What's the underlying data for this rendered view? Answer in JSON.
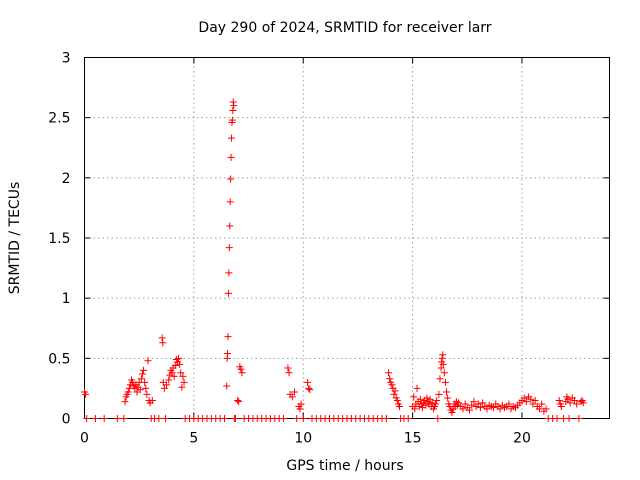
{
  "chart_data": {
    "type": "scatter",
    "title": "Day 290 of 2024, SRMTID for receiver larr",
    "xlabel": "GPS time / hours",
    "ylabel": "SRMTID / TECUs",
    "xlim": [
      0,
      24
    ],
    "ylim": [
      0,
      3
    ],
    "xticks": [
      0,
      5,
      10,
      15,
      20
    ],
    "xtick_labels": [
      "0",
      "5",
      "10",
      "15",
      "20"
    ],
    "yticks": [
      0,
      0.5,
      1,
      1.5,
      2,
      2.5,
      3
    ],
    "ytick_labels": [
      "0",
      "0.5",
      "1",
      "1.5",
      "2",
      "2.5",
      "3"
    ],
    "grid": true,
    "marker": "+",
    "color": "#ff0000",
    "series": [
      {
        "name": "SRMTID",
        "points": [
          [
            0.0,
            0.22
          ],
          [
            0.05,
            0.2
          ],
          [
            0.1,
            0.0
          ],
          [
            0.5,
            0.0
          ],
          [
            0.9,
            0.0
          ],
          [
            1.5,
            0.0
          ],
          [
            1.8,
            0.0
          ],
          [
            1.85,
            0.14
          ],
          [
            1.9,
            0.18
          ],
          [
            1.95,
            0.2
          ],
          [
            2.0,
            0.22
          ],
          [
            2.05,
            0.25
          ],
          [
            2.1,
            0.28
          ],
          [
            2.15,
            0.32
          ],
          [
            2.2,
            0.3
          ],
          [
            2.25,
            0.27
          ],
          [
            2.3,
            0.25
          ],
          [
            2.35,
            0.28
          ],
          [
            2.4,
            0.22
          ],
          [
            2.45,
            0.26
          ],
          [
            2.5,
            0.3
          ],
          [
            2.55,
            0.24
          ],
          [
            2.6,
            0.33
          ],
          [
            2.65,
            0.37
          ],
          [
            2.7,
            0.4
          ],
          [
            2.75,
            0.3
          ],
          [
            2.8,
            0.25
          ],
          [
            2.85,
            0.2
          ],
          [
            2.9,
            0.48
          ],
          [
            2.95,
            0.15
          ],
          [
            3.0,
            0.13
          ],
          [
            3.05,
            0.0
          ],
          [
            3.1,
            0.15
          ],
          [
            3.2,
            0.0
          ],
          [
            3.4,
            0.0
          ],
          [
            3.55,
            0.67
          ],
          [
            3.58,
            0.63
          ],
          [
            3.6,
            0.3
          ],
          [
            3.65,
            0.25
          ],
          [
            3.7,
            0.0
          ],
          [
            3.75,
            0.28
          ],
          [
            3.85,
            0.32
          ],
          [
            3.9,
            0.36
          ],
          [
            3.95,
            0.4
          ],
          [
            4.0,
            0.38
          ],
          [
            4.05,
            0.42
          ],
          [
            4.1,
            0.35
          ],
          [
            4.15,
            0.44
          ],
          [
            4.2,
            0.49
          ],
          [
            4.25,
            0.47
          ],
          [
            4.3,
            0.5
          ],
          [
            4.35,
            0.45
          ],
          [
            4.4,
            0.38
          ],
          [
            4.45,
            0.26
          ],
          [
            4.5,
            0.35
          ],
          [
            4.55,
            0.3
          ],
          [
            4.6,
            0.0
          ],
          [
            4.8,
            0.0
          ],
          [
            5.0,
            0.0
          ],
          [
            5.2,
            0.0
          ],
          [
            5.4,
            0.0
          ],
          [
            5.6,
            0.0
          ],
          [
            5.8,
            0.0
          ],
          [
            6.0,
            0.0
          ],
          [
            6.2,
            0.0
          ],
          [
            6.4,
            0.0
          ],
          [
            6.5,
            0.27
          ],
          [
            6.52,
            0.5
          ],
          [
            6.54,
            0.54
          ],
          [
            6.56,
            0.68
          ],
          [
            6.58,
            1.04
          ],
          [
            6.6,
            1.21
          ],
          [
            6.62,
            1.42
          ],
          [
            6.64,
            1.6
          ],
          [
            6.66,
            1.8
          ],
          [
            6.68,
            1.99
          ],
          [
            6.7,
            2.17
          ],
          [
            6.72,
            2.33
          ],
          [
            6.74,
            2.46
          ],
          [
            6.76,
            2.48
          ],
          [
            6.78,
            2.56
          ],
          [
            6.8,
            2.63
          ],
          [
            6.82,
            2.6
          ],
          [
            6.85,
            0.0
          ],
          [
            6.9,
            0.0
          ],
          [
            7.0,
            0.15
          ],
          [
            7.05,
            0.14
          ],
          [
            7.1,
            0.43
          ],
          [
            7.15,
            0.41
          ],
          [
            7.2,
            0.38
          ],
          [
            7.3,
            0.0
          ],
          [
            7.5,
            0.0
          ],
          [
            7.7,
            0.0
          ],
          [
            7.9,
            0.0
          ],
          [
            8.1,
            0.0
          ],
          [
            8.3,
            0.0
          ],
          [
            8.5,
            0.0
          ],
          [
            8.7,
            0.0
          ],
          [
            8.9,
            0.0
          ],
          [
            9.1,
            0.0
          ],
          [
            9.3,
            0.42
          ],
          [
            9.35,
            0.38
          ],
          [
            9.4,
            0.2
          ],
          [
            9.5,
            0.18
          ],
          [
            9.6,
            0.22
          ],
          [
            9.7,
            0.0
          ],
          [
            9.8,
            0.1
          ],
          [
            9.85,
            0.08
          ],
          [
            9.9,
            0.12
          ],
          [
            10.0,
            0.0
          ],
          [
            10.2,
            0.3
          ],
          [
            10.25,
            0.25
          ],
          [
            10.3,
            0.24
          ],
          [
            10.4,
            0.0
          ],
          [
            10.6,
            0.0
          ],
          [
            10.8,
            0.0
          ],
          [
            11.0,
            0.0
          ],
          [
            11.2,
            0.0
          ],
          [
            11.4,
            0.0
          ],
          [
            11.6,
            0.0
          ],
          [
            11.8,
            0.0
          ],
          [
            12.0,
            0.0
          ],
          [
            12.2,
            0.0
          ],
          [
            12.4,
            0.0
          ],
          [
            12.6,
            0.0
          ],
          [
            12.8,
            0.0
          ],
          [
            13.0,
            0.0
          ],
          [
            13.2,
            0.0
          ],
          [
            13.4,
            0.0
          ],
          [
            13.6,
            0.0
          ],
          [
            13.8,
            0.0
          ],
          [
            13.9,
            0.38
          ],
          [
            13.95,
            0.33
          ],
          [
            14.0,
            0.3
          ],
          [
            14.05,
            0.28
          ],
          [
            14.1,
            0.25
          ],
          [
            14.15,
            0.2
          ],
          [
            14.2,
            0.23
          ],
          [
            14.25,
            0.17
          ],
          [
            14.3,
            0.15
          ],
          [
            14.35,
            0.12
          ],
          [
            14.4,
            0.1
          ],
          [
            14.45,
            0.0
          ],
          [
            14.6,
            0.0
          ],
          [
            14.8,
            0.0
          ],
          [
            15.0,
            0.1
          ],
          [
            15.05,
            0.18
          ],
          [
            15.1,
            0.08
          ],
          [
            15.15,
            0.12
          ],
          [
            15.2,
            0.25
          ],
          [
            15.25,
            0.14
          ],
          [
            15.3,
            0.1
          ],
          [
            15.35,
            0.16
          ],
          [
            15.4,
            0.12
          ],
          [
            15.45,
            0.09
          ],
          [
            15.5,
            0.13
          ],
          [
            15.55,
            0.15
          ],
          [
            15.6,
            0.11
          ],
          [
            15.65,
            0.17
          ],
          [
            15.7,
            0.14
          ],
          [
            15.75,
            0.12
          ],
          [
            15.8,
            0.16
          ],
          [
            15.85,
            0.1
          ],
          [
            15.9,
            0.13
          ],
          [
            15.95,
            0.08
          ],
          [
            16.0,
            0.1
          ],
          [
            16.05,
            0.12
          ],
          [
            16.1,
            0.15
          ],
          [
            16.15,
            0.0
          ],
          [
            16.2,
            0.2
          ],
          [
            16.25,
            0.33
          ],
          [
            16.3,
            0.42
          ],
          [
            16.32,
            0.47
          ],
          [
            16.35,
            0.5
          ],
          [
            16.38,
            0.53
          ],
          [
            16.4,
            0.45
          ],
          [
            16.45,
            0.38
          ],
          [
            16.5,
            0.3
          ],
          [
            16.55,
            0.22
          ],
          [
            16.6,
            0.17
          ],
          [
            16.65,
            0.12
          ],
          [
            16.7,
            0.1
          ],
          [
            16.75,
            0.07
          ],
          [
            16.8,
            0.05
          ],
          [
            16.85,
            0.08
          ],
          [
            16.9,
            0.12
          ],
          [
            16.95,
            0.1
          ],
          [
            17.0,
            0.14
          ],
          [
            17.05,
            0.11
          ],
          [
            17.1,
            0.13
          ],
          [
            17.2,
            0.1
          ],
          [
            17.3,
            0.08
          ],
          [
            17.4,
            0.12
          ],
          [
            17.5,
            0.09
          ],
          [
            17.6,
            0.07
          ],
          [
            17.7,
            0.11
          ],
          [
            17.8,
            0.14
          ],
          [
            17.9,
            0.1
          ],
          [
            18.0,
            0.12
          ],
          [
            18.1,
            0.09
          ],
          [
            18.2,
            0.13
          ],
          [
            18.3,
            0.1
          ],
          [
            18.4,
            0.08
          ],
          [
            18.5,
            0.11
          ],
          [
            18.6,
            0.1
          ],
          [
            18.7,
            0.09
          ],
          [
            18.8,
            0.12
          ],
          [
            18.9,
            0.1
          ],
          [
            19.0,
            0.08
          ],
          [
            19.1,
            0.11
          ],
          [
            19.2,
            0.09
          ],
          [
            19.3,
            0.1
          ],
          [
            19.4,
            0.12
          ],
          [
            19.5,
            0.08
          ],
          [
            19.6,
            0.1
          ],
          [
            19.7,
            0.09
          ],
          [
            19.8,
            0.11
          ],
          [
            19.9,
            0.13
          ],
          [
            20.0,
            0.15
          ],
          [
            20.1,
            0.17
          ],
          [
            20.2,
            0.14
          ],
          [
            20.3,
            0.18
          ],
          [
            20.4,
            0.16
          ],
          [
            20.5,
            0.12
          ],
          [
            20.6,
            0.15
          ],
          [
            20.7,
            0.1
          ],
          [
            20.8,
            0.08
          ],
          [
            20.9,
            0.12
          ],
          [
            21.0,
            0.06
          ],
          [
            21.1,
            0.08
          ],
          [
            21.2,
            0.0
          ],
          [
            21.4,
            0.0
          ],
          [
            21.6,
            0.0
          ],
          [
            21.7,
            0.15
          ],
          [
            21.75,
            0.12
          ],
          [
            21.8,
            0.1
          ],
          [
            21.9,
            0.0
          ],
          [
            22.0,
            0.14
          ],
          [
            22.05,
            0.18
          ],
          [
            22.1,
            0.16
          ],
          [
            22.15,
            0.0
          ],
          [
            22.2,
            0.13
          ],
          [
            22.3,
            0.17
          ],
          [
            22.4,
            0.15
          ],
          [
            22.5,
            0.12
          ],
          [
            22.6,
            0.0
          ],
          [
            22.7,
            0.14
          ],
          [
            22.75,
            0.15
          ],
          [
            22.8,
            0.13
          ]
        ]
      }
    ]
  }
}
